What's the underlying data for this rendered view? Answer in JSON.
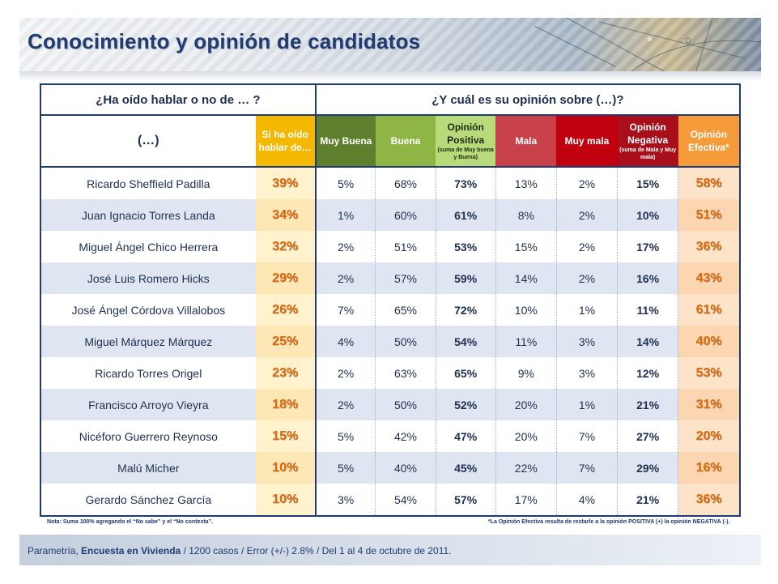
{
  "title": "Conocimiento y opinión de candidatos",
  "header": {
    "group_left": "¿Ha oído hablar o no de … ?",
    "group_right": "¿Y cuál es su opinión sobre (…)?",
    "col_name": "(…)",
    "col_ha": "Si ha oído hablar de…",
    "col_muy_buena": "Muy Buena",
    "col_buena": "Buena",
    "col_op_pos": "Opinión Positiva",
    "col_op_pos_sub": "(suma de Muy buena y Buena)",
    "col_mala": "Mala",
    "col_muy_mala": "Muy mala",
    "col_op_neg": "Opinión Negativa",
    "col_op_neg_sub": "(suma de Mala y Muy mala)",
    "col_op_ef": "Opinión Efectiva*"
  },
  "rows": [
    {
      "name": "Ricardo Sheffield Padilla",
      "ha": "39%",
      "mb": "5%",
      "b": "68%",
      "op": "73%",
      "ma": "13%",
      "mm": "2%",
      "on": "15%",
      "oe": "58%"
    },
    {
      "name": "Juan Ignacio Torres Landa",
      "ha": "34%",
      "mb": "1%",
      "b": "60%",
      "op": "61%",
      "ma": "8%",
      "mm": "2%",
      "on": "10%",
      "oe": "51%"
    },
    {
      "name": "Miguel Ángel Chico Herrera",
      "ha": "32%",
      "mb": "2%",
      "b": "51%",
      "op": "53%",
      "ma": "15%",
      "mm": "2%",
      "on": "17%",
      "oe": "36%"
    },
    {
      "name": "José Luis Romero Hicks",
      "ha": "29%",
      "mb": "2%",
      "b": "57%",
      "op": "59%",
      "ma": "14%",
      "mm": "2%",
      "on": "16%",
      "oe": "43%"
    },
    {
      "name": "José Ángel Córdova Villalobos",
      "ha": "26%",
      "mb": "7%",
      "b": "65%",
      "op": "72%",
      "ma": "10%",
      "mm": "1%",
      "on": "11%",
      "oe": "61%"
    },
    {
      "name": "Miguel Márquez Márquez",
      "ha": "25%",
      "mb": "4%",
      "b": "50%",
      "op": "54%",
      "ma": "11%",
      "mm": "3%",
      "on": "14%",
      "oe": "40%"
    },
    {
      "name": "Ricardo Torres Origel",
      "ha": "23%",
      "mb": "2%",
      "b": "63%",
      "op": "65%",
      "ma": "9%",
      "mm": "3%",
      "on": "12%",
      "oe": "53%"
    },
    {
      "name": "Francisco Arroyo Vieyra",
      "ha": "18%",
      "mb": "2%",
      "b": "50%",
      "op": "52%",
      "ma": "20%",
      "mm": "1%",
      "on": "21%",
      "oe": "31%"
    },
    {
      "name": "Nicéforo Guerrero Reynoso",
      "ha": "15%",
      "mb": "5%",
      "b": "42%",
      "op": "47%",
      "ma": "20%",
      "mm": "7%",
      "on": "27%",
      "oe": "20%"
    },
    {
      "name": "Malú Micher",
      "ha": "10%",
      "mb": "5%",
      "b": "40%",
      "op": "45%",
      "ma": "22%",
      "mm": "7%",
      "on": "29%",
      "oe": "16%"
    },
    {
      "name": "Gerardo Sánchez García",
      "ha": "10%",
      "mb": "3%",
      "b": "54%",
      "op": "57%",
      "ma": "17%",
      "mm": "4%",
      "on": "21%",
      "oe": "36%"
    }
  ],
  "notes": {
    "left": "Nota: Suma 100% agregando el “No sabe” y el “No contesta”.",
    "right": "*La Opinión Efectiva resulta de restarle a la opinión POSITIVA (+) la opinión NEGATIVA (-)."
  },
  "footer": {
    "source": "Parametría,",
    "survey": "Encuesta en Vivienda",
    "details": "/ 1200 casos / Error (+/-) 2.8% / Del 1 al 4 de octubre de 2011."
  },
  "colors": {
    "navy": "#1f3b74",
    "ha_header": "#f5b800",
    "muy_buena": "#5f7f2f",
    "buena": "#8fb544",
    "opinion_positiva": "#b8da7a",
    "mala": "#c8414a",
    "muy_mala": "#c0000f",
    "opinion_negativa": "#a80f1a",
    "opinion_efectiva": "#f59b3a",
    "percent_orange": "#e36c09"
  }
}
